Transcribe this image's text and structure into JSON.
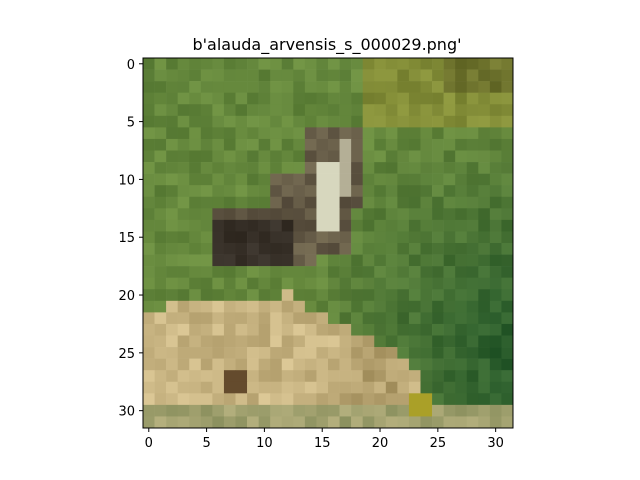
{
  "figure": {
    "title": "b'alauda_arvensis_s_000029.png'"
  },
  "axes": {
    "x_ticks": [
      "0",
      "5",
      "10",
      "15",
      "20",
      "25",
      "30"
    ],
    "y_ticks": [
      "0",
      "5",
      "10",
      "15",
      "20",
      "25",
      "30"
    ],
    "xlim": [
      -0.5,
      31.5
    ],
    "ylim": [
      31.5,
      -0.5
    ]
  },
  "image": {
    "description_colors": {
      "grass_green": "#5f7f3a",
      "dark_green": "#2f5a2a",
      "bird_brown": "#6a5a45",
      "bird_dark": "#3a3028",
      "bird_light": "#c8c8a8",
      "ground_tan": "#c9b68a",
      "olive": "#8a7a3a"
    }
  }
}
